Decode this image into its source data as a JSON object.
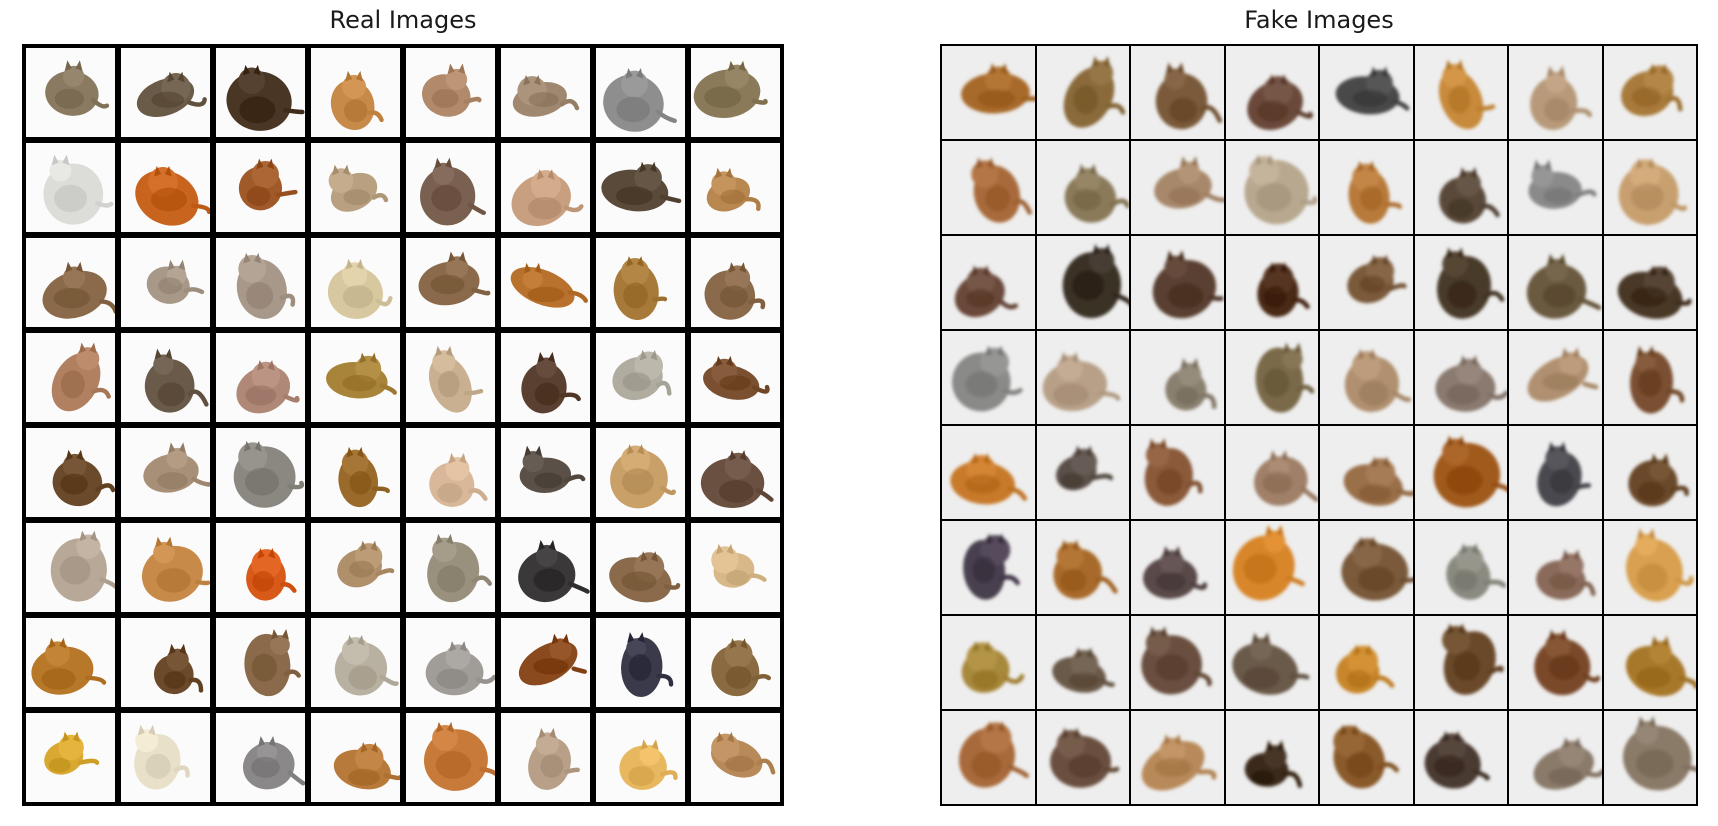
{
  "panels": {
    "real": {
      "title": "Real Images"
    },
    "fake": {
      "title": "Fake Images"
    }
  },
  "grid": {
    "rows": 8,
    "cols": 8
  },
  "colors": {
    "grid_border": "#000000",
    "tile_bg_real": "#fafafa",
    "tile_bg_fake": "#f3f3f3"
  },
  "real_images": [
    [
      "#8a7a62",
      "#6a5a48",
      "#4a3624",
      "#c88a48",
      "#b08a6a",
      "#a08870",
      "#8e8e8e",
      "#8a7a5a"
    ],
    [
      "#dcdcd8",
      "#c8641e",
      "#a05a2a",
      "#b8a080",
      "#7a6050",
      "#c8a080",
      "#5a4a3a",
      "#b88850"
    ],
    [
      "#8a6a4a",
      "#a89888",
      "#a8988a",
      "#d8c8a0",
      "#8a6a4a",
      "#b8722e",
      "#a87a3a",
      "#8a6a4a"
    ],
    [
      "#b08060",
      "#6a5a4a",
      "#b08878",
      "#a8843a",
      "#c8b090",
      "#5a4030",
      "#b0aca0",
      "#7a5030"
    ],
    [
      "#6a4a2a",
      "#a89078",
      "#8a8880",
      "#9a6a2a",
      "#d8b898",
      "#5a5048",
      "#c8a068",
      "#6a5040"
    ],
    [
      "#b8a898",
      "#c88a48",
      "#d85a18",
      "#b0906a",
      "#9a907e",
      "#3a3838",
      "#8a6a4a",
      "#d8b888"
    ],
    [
      "#b8782a",
      "#6a4a2a",
      "#8a6a4a",
      "#b8b0a0",
      "#a09c98",
      "#8a4a1e",
      "#3a3a4a",
      "#8a6a40"
    ],
    [
      "#d8a830",
      "#e8e0c8",
      "#8a8888",
      "#b87a3a",
      "#c87a3a",
      "#b8a088",
      "#e8b860",
      "#b88a5a"
    ]
  ],
  "fake_images": [
    [
      "#a86a2a",
      "#8a6a3a",
      "#7a5a3a",
      "#6a4a3a",
      "#4a4a4a",
      "#c88a3a",
      "#b89a7a",
      "#a87a3a"
    ],
    [
      "#a86a3a",
      "#8a7a5a",
      "#a8886a",
      "#b8a890",
      "#b87a3a",
      "#5a4a3a",
      "#8a8a8a",
      "#c8a070"
    ],
    [
      "#6a4a3a",
      "#3a3028",
      "#5a4030",
      "#4a2a18",
      "#7a5a3a",
      "#4a3a2a",
      "#6a5a40",
      "#4a3828"
    ],
    [
      "#8a8a88",
      "#b8a088",
      "#8a8070",
      "#7a6a4a",
      "#b09070",
      "#8a7a70",
      "#b09070",
      "#7a5030"
    ],
    [
      "#c87a2a",
      "#5a5048",
      "#8a5a3a",
      "#a08068",
      "#9a704a",
      "#a05a1e",
      "#4a4a50",
      "#6a4a2a"
    ],
    [
      "#4a4050",
      "#a86a2a",
      "#5a4a4a",
      "#d8862a",
      "#7a5a3a",
      "#8a8a80",
      "#8a6a5a",
      "#d8a050"
    ],
    [
      "#a8883a",
      "#6a5a48",
      "#6a5040",
      "#6a5a4a",
      "#c8862a",
      "#6a4a2a",
      "#7a4a2a",
      "#a8782a"
    ],
    [
      "#a86a3a",
      "#6a5040",
      "#b88a5a",
      "#3a2a1a",
      "#8a5a2a",
      "#4a3a30",
      "#8a7a6a",
      "#8a7a68"
    ]
  ]
}
